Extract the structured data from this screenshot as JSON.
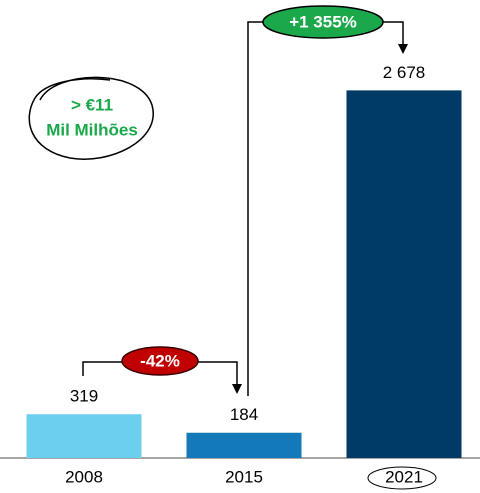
{
  "chart_data": {
    "type": "bar",
    "categories": [
      "2008",
      "2015",
      "2021"
    ],
    "values": [
      319,
      184,
      2678
    ],
    "value_labels": [
      "319",
      "184",
      "2 678"
    ],
    "colors": [
      "#6dcff0",
      "#1479b8",
      "#003a66"
    ],
    "ylim": [
      0,
      3300
    ],
    "annotations": [
      "-42%",
      "+1 355%",
      "> €11",
      "Mil Milhões"
    ]
  }
}
